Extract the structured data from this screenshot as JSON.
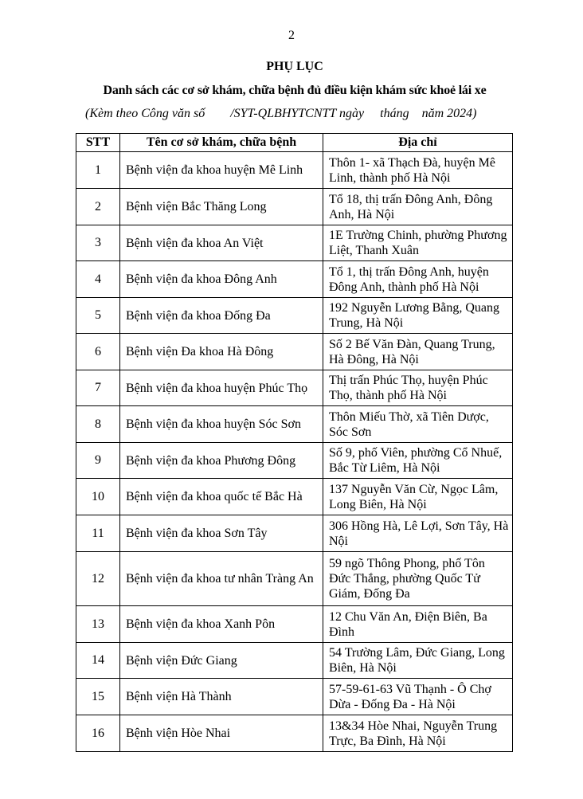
{
  "page_number": "2",
  "title": "PHỤ LỤC",
  "subtitle": "Danh sách các cơ sở khám, chữa bệnh đủ điều kiện khám sức khoẻ lái xe",
  "reference": "(Kèm theo Công văn số        /SYT-QLBHYTCNTT ngày     tháng    năm 2024)",
  "table": {
    "headers": [
      "STT",
      "Tên cơ sở khám, chữa bệnh",
      "Địa chỉ"
    ],
    "rows": [
      {
        "stt": "1",
        "name": "Bệnh viện đa khoa huyện Mê Linh",
        "address": "Thôn 1- xã Thạch Đà, huyện Mê Linh, thành phố Hà Nội"
      },
      {
        "stt": "2",
        "name": "Bệnh viện Bắc Thăng Long",
        "address": "Tổ 18, thị trấn Đông Anh, Đông Anh, Hà Nội"
      },
      {
        "stt": "3",
        "name": "Bệnh viện đa khoa An Việt",
        "address": "1E Trường Chinh, phường Phương Liệt, Thanh Xuân"
      },
      {
        "stt": "4",
        "name": "Bệnh viện đa khoa Đông Anh",
        "address": "Tổ 1, thị trấn Đông Anh, huyện Đông Anh, thành phố Hà Nội"
      },
      {
        "stt": "5",
        "name": "Bệnh viện đa khoa Đống Đa",
        "address": "192 Nguyễn Lương Bằng, Quang Trung, Hà Nội"
      },
      {
        "stt": "6",
        "name": "Bệnh viện Đa khoa Hà Đông",
        "address": "Số 2 Bế Văn Đàn, Quang Trung, Hà Đông, Hà Nội"
      },
      {
        "stt": "7",
        "name": "Bệnh viện đa khoa huyện Phúc Thọ",
        "address": "Thị trấn Phúc Thọ, huyện Phúc Thọ, thành phố Hà Nội"
      },
      {
        "stt": "8",
        "name": "Bệnh viện đa khoa huyện Sóc Sơn",
        "address": "Thôn Miếu Thờ, xã Tiên Dược, Sóc Sơn"
      },
      {
        "stt": "9",
        "name": "Bệnh viện đa khoa Phương Đông",
        "address": "Số 9, phố Viên, phường Cổ Nhuế, Bắc Từ Liêm, Hà Nội"
      },
      {
        "stt": "10",
        "name": "Bệnh viện đa khoa quốc tế Bắc Hà",
        "address": "137 Nguyễn Văn Cừ, Ngọc Lâm, Long Biên, Hà Nội"
      },
      {
        "stt": "11",
        "name": "Bệnh viện đa khoa Sơn Tây",
        "address": "306 Hồng Hà, Lê Lợi, Sơn Tây, Hà Nội"
      },
      {
        "stt": "12",
        "name": "Bệnh viện đa khoa tư nhân Tràng An",
        "address": "59 ngõ Thông Phong, phố Tôn Đức Thắng, phường Quốc Tử Giám, Đống Đa"
      },
      {
        "stt": "13",
        "name": "Bệnh viện đa khoa Xanh Pôn",
        "address": "12 Chu Văn An, Điện Biên, Ba Đình"
      },
      {
        "stt": "14",
        "name": "Bệnh viện Đức Giang",
        "address": "54 Trường Lâm, Đức Giang, Long Biên, Hà Nội"
      },
      {
        "stt": "15",
        "name": "Bệnh viện Hà Thành",
        "address": "57-59-61-63 Vũ Thạnh - Ô Chợ Dừa - Đống Đa - Hà Nội"
      },
      {
        "stt": "16",
        "name": "Bệnh viện Hòe Nhai",
        "address": "13&34 Hòe Nhai, Nguyễn Trung Trực, Ba Đình, Hà Nội"
      }
    ]
  }
}
